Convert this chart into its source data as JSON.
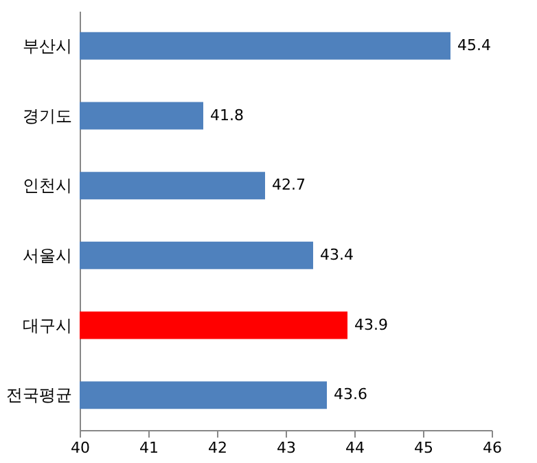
{
  "chart_data": {
    "type": "bar",
    "orientation": "horizontal",
    "categories": [
      "부산시",
      "경기도",
      "인천시",
      "서울시",
      "대구시",
      "전국평균"
    ],
    "values": [
      45.4,
      41.8,
      42.7,
      43.4,
      43.9,
      43.6
    ],
    "colors": [
      "#4f81bd",
      "#4f81bd",
      "#4f81bd",
      "#4f81bd",
      "#ff0000",
      "#4f81bd"
    ],
    "xlim": [
      40,
      46
    ],
    "xticks": [
      40,
      41,
      42,
      43,
      44,
      45,
      46
    ],
    "data_labels": true,
    "grid": false
  }
}
